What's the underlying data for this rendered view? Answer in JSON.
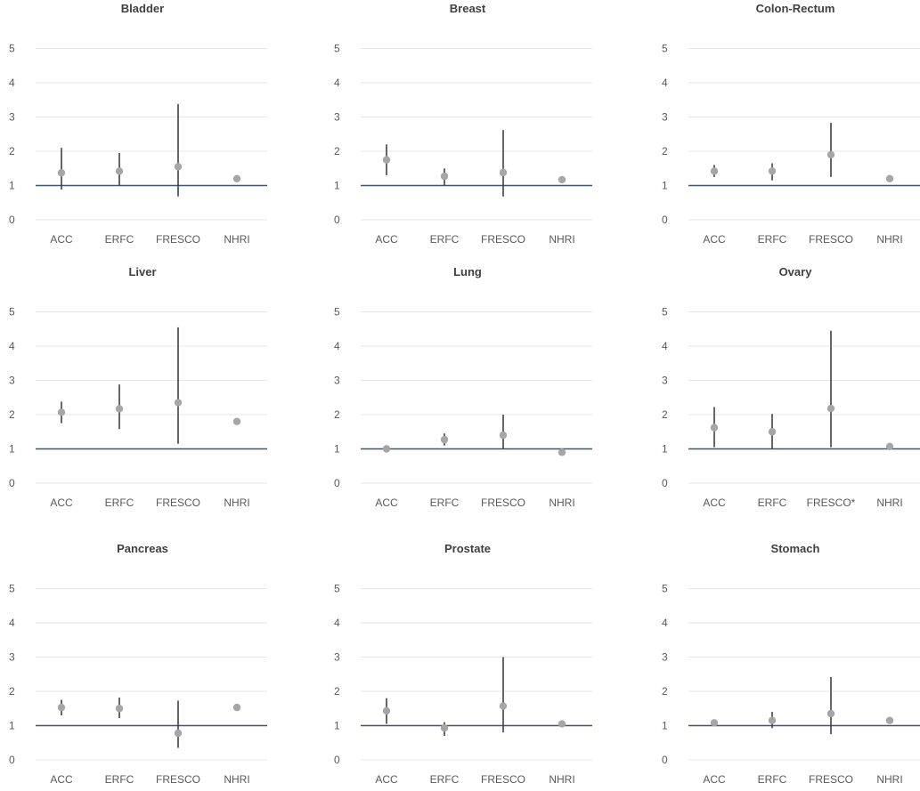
{
  "chart_data": [
    {
      "type": "scatter",
      "title": "Bladder",
      "categories": [
        "ACC",
        "ERFC",
        "FRESCO",
        "NHRI"
      ],
      "values": [
        1.37,
        1.42,
        1.55,
        1.2
      ],
      "lower": [
        0.88,
        1.0,
        0.68,
        1.15
      ],
      "upper": [
        2.1,
        1.95,
        3.38,
        1.25
      ],
      "ylim": [
        0,
        5
      ],
      "yticks": [
        0,
        1,
        2,
        3,
        4,
        5
      ],
      "reference_line": 1
    },
    {
      "type": "scatter",
      "title": "Breast",
      "categories": [
        "ACC",
        "ERFC",
        "FRESCO",
        "NHRI"
      ],
      "values": [
        1.75,
        1.27,
        1.38,
        1.17
      ],
      "lower": [
        1.3,
        1.0,
        0.68,
        1.12
      ],
      "upper": [
        2.2,
        1.5,
        2.62,
        1.22
      ],
      "ylim": [
        0,
        5
      ],
      "yticks": [
        0,
        1,
        2,
        3,
        4,
        5
      ],
      "reference_line": 1
    },
    {
      "type": "scatter",
      "title": "Colon-Rectum",
      "categories": [
        "ACC",
        "ERFC",
        "FRESCO",
        "NHRI"
      ],
      "values": [
        1.42,
        1.42,
        1.9,
        1.2
      ],
      "lower": [
        1.25,
        1.15,
        1.25,
        1.15
      ],
      "upper": [
        1.6,
        1.65,
        2.83,
        1.25
      ],
      "ylim": [
        0,
        5
      ],
      "yticks": [
        0,
        1,
        2,
        3,
        4,
        5
      ],
      "reference_line": 1
    },
    {
      "type": "scatter",
      "title": "Liver",
      "categories": [
        "ACC",
        "ERFC",
        "FRESCO",
        "NHRI"
      ],
      "values": [
        2.07,
        2.17,
        2.35,
        1.8
      ],
      "lower": [
        1.75,
        1.58,
        1.15,
        1.75
      ],
      "upper": [
        2.38,
        2.88,
        4.55,
        1.85
      ],
      "ylim": [
        0,
        5
      ],
      "yticks": [
        0,
        1,
        2,
        3,
        4,
        5
      ],
      "reference_line": 1
    },
    {
      "type": "scatter",
      "title": "Lung",
      "categories": [
        "ACC",
        "ERFC",
        "FRESCO",
        "NHRI"
      ],
      "values": [
        1.0,
        1.27,
        1.4,
        0.9
      ],
      "lower": [
        0.96,
        1.1,
        1.0,
        0.86
      ],
      "upper": [
        1.04,
        1.45,
        2.0,
        0.94
      ],
      "ylim": [
        0,
        5
      ],
      "yticks": [
        0,
        1,
        2,
        3,
        4,
        5
      ],
      "reference_line": 1
    },
    {
      "type": "scatter",
      "title": "Ovary",
      "categories": [
        "ACC",
        "ERFC",
        "FRESCO*",
        "NHRI"
      ],
      "values": [
        1.62,
        1.5,
        2.18,
        1.07
      ],
      "lower": [
        1.05,
        1.0,
        1.05,
        1.03
      ],
      "upper": [
        2.22,
        2.02,
        4.45,
        1.11
      ],
      "ylim": [
        0,
        5
      ],
      "yticks": [
        0,
        1,
        2,
        3,
        4,
        5
      ],
      "reference_line": 1
    },
    {
      "type": "scatter",
      "title": "Pancreas",
      "categories": [
        "ACC",
        "ERFC",
        "FRESCO",
        "NHRI"
      ],
      "values": [
        1.53,
        1.5,
        0.78,
        1.53
      ],
      "lower": [
        1.3,
        1.22,
        0.35,
        1.45
      ],
      "upper": [
        1.75,
        1.82,
        1.73,
        1.6
      ],
      "ylim": [
        0,
        5
      ],
      "yticks": [
        0,
        1,
        2,
        3,
        4,
        5
      ],
      "reference_line": 1
    },
    {
      "type": "scatter",
      "title": "Prostate",
      "categories": [
        "ACC",
        "ERFC",
        "FRESCO",
        "NHRI"
      ],
      "values": [
        1.43,
        0.93,
        1.57,
        1.05
      ],
      "lower": [
        1.05,
        0.7,
        0.8,
        1.0
      ],
      "upper": [
        1.8,
        1.1,
        3.0,
        1.1
      ],
      "ylim": [
        0,
        5
      ],
      "yticks": [
        0,
        1,
        2,
        3,
        4,
        5
      ],
      "reference_line": 1
    },
    {
      "type": "scatter",
      "title": "Stomach",
      "categories": [
        "ACC",
        "ERFC",
        "FRESCO",
        "NHRI"
      ],
      "values": [
        1.08,
        1.15,
        1.35,
        1.15
      ],
      "lower": [
        0.98,
        0.93,
        0.75,
        1.1
      ],
      "upper": [
        1.18,
        1.4,
        2.42,
        1.2
      ],
      "ylim": [
        0,
        5
      ],
      "yticks": [
        0,
        1,
        2,
        3,
        4,
        5
      ],
      "reference_line": 1
    }
  ],
  "colors": {
    "point": "#a6a6a6",
    "error_bar": "#404040",
    "reference_line": "#44546a",
    "grid": "#e6e6e6",
    "text": "#595959",
    "title": "#404040"
  }
}
